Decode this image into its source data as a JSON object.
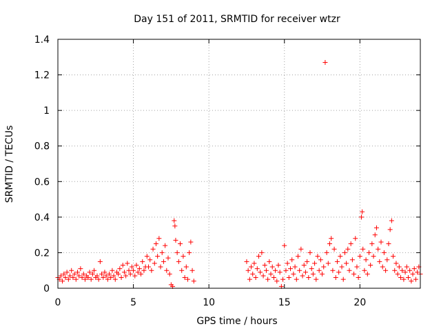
{
  "chart_data": {
    "type": "scatter",
    "title": "Day 151 of 2011, SRMTID for receiver wtzr",
    "xlabel": "GPS time / hours",
    "ylabel": "SRMTID / TECUs",
    "xlim": [
      0,
      24
    ],
    "ylim": [
      0,
      1.4
    ],
    "xticks": [
      0,
      5,
      10,
      15,
      20
    ],
    "xtick_labels": [
      "0",
      "5",
      "10",
      "15",
      "20"
    ],
    "yticks": [
      0,
      0.2,
      0.4,
      0.6,
      0.8,
      1,
      1.2,
      1.4
    ],
    "ytick_labels": [
      "0",
      "0.2",
      "0.4",
      "0.6",
      "0.8",
      "1",
      "1.2",
      "1.4"
    ],
    "grid": true,
    "marker": "+",
    "color": "#ff0000",
    "series": [
      {
        "name": "SRMTID",
        "points": [
          [
            0.0,
            0.06
          ],
          [
            0.1,
            0.05
          ],
          [
            0.2,
            0.07
          ],
          [
            0.3,
            0.04
          ],
          [
            0.4,
            0.08
          ],
          [
            0.5,
            0.06
          ],
          [
            0.6,
            0.09
          ],
          [
            0.7,
            0.05
          ],
          [
            0.8,
            0.07
          ],
          [
            0.9,
            0.1
          ],
          [
            1.0,
            0.06
          ],
          [
            1.1,
            0.08
          ],
          [
            1.2,
            0.05
          ],
          [
            1.3,
            0.09
          ],
          [
            1.4,
            0.07
          ],
          [
            1.5,
            0.11
          ],
          [
            1.6,
            0.06
          ],
          [
            1.7,
            0.08
          ],
          [
            1.8,
            0.05
          ],
          [
            1.9,
            0.07
          ],
          [
            2.0,
            0.06
          ],
          [
            2.1,
            0.09
          ],
          [
            2.2,
            0.05
          ],
          [
            2.3,
            0.08
          ],
          [
            2.4,
            0.1
          ],
          [
            2.5,
            0.06
          ],
          [
            2.6,
            0.07
          ],
          [
            2.7,
            0.05
          ],
          [
            2.8,
            0.15
          ],
          [
            2.9,
            0.08
          ],
          [
            3.0,
            0.06
          ],
          [
            3.1,
            0.09
          ],
          [
            3.2,
            0.07
          ],
          [
            3.3,
            0.05
          ],
          [
            3.4,
            0.08
          ],
          [
            3.5,
            0.06
          ],
          [
            3.6,
            0.1
          ],
          [
            3.7,
            0.07
          ],
          [
            3.8,
            0.05
          ],
          [
            3.9,
            0.09
          ],
          [
            4.0,
            0.08
          ],
          [
            4.1,
            0.11
          ],
          [
            4.2,
            0.06
          ],
          [
            4.3,
            0.13
          ],
          [
            4.4,
            0.09
          ],
          [
            4.5,
            0.07
          ],
          [
            4.6,
            0.14
          ],
          [
            4.7,
            0.1
          ],
          [
            4.8,
            0.08
          ],
          [
            4.9,
            0.12
          ],
          [
            5.0,
            0.1
          ],
          [
            5.1,
            0.07
          ],
          [
            5.2,
            0.13
          ],
          [
            5.3,
            0.09
          ],
          [
            5.4,
            0.11
          ],
          [
            5.5,
            0.08
          ],
          [
            5.6,
            0.15
          ],
          [
            5.7,
            0.1
          ],
          [
            5.8,
            0.12
          ],
          [
            5.9,
            0.18
          ],
          [
            6.0,
            0.12
          ],
          [
            6.1,
            0.16
          ],
          [
            6.2,
            0.1
          ],
          [
            6.3,
            0.22
          ],
          [
            6.4,
            0.14
          ],
          [
            6.5,
            0.25
          ],
          [
            6.6,
            0.18
          ],
          [
            6.7,
            0.28
          ],
          [
            6.8,
            0.12
          ],
          [
            6.9,
            0.2
          ],
          [
            7.0,
            0.15
          ],
          [
            7.1,
            0.24
          ],
          [
            7.2,
            0.1
          ],
          [
            7.3,
            0.17
          ],
          [
            7.4,
            0.08
          ],
          [
            7.5,
            0.02
          ],
          [
            7.6,
            0.01
          ],
          [
            7.7,
            0.38
          ],
          [
            7.75,
            0.35
          ],
          [
            7.8,
            0.27
          ],
          [
            7.9,
            0.2
          ],
          [
            8.0,
            0.15
          ],
          [
            8.1,
            0.25
          ],
          [
            8.2,
            0.1
          ],
          [
            8.3,
            0.18
          ],
          [
            8.4,
            0.06
          ],
          [
            8.5,
            0.12
          ],
          [
            8.6,
            0.05
          ],
          [
            8.7,
            0.2
          ],
          [
            8.8,
            0.26
          ],
          [
            8.9,
            0.1
          ],
          [
            9.0,
            0.04
          ],
          [
            12.5,
            0.15
          ],
          [
            12.6,
            0.1
          ],
          [
            12.7,
            0.05
          ],
          [
            12.8,
            0.12
          ],
          [
            12.9,
            0.08
          ],
          [
            13.0,
            0.14
          ],
          [
            13.1,
            0.06
          ],
          [
            13.2,
            0.11
          ],
          [
            13.3,
            0.18
          ],
          [
            13.4,
            0.09
          ],
          [
            13.5,
            0.2
          ],
          [
            13.6,
            0.07
          ],
          [
            13.7,
            0.13
          ],
          [
            13.8,
            0.1
          ],
          [
            13.9,
            0.05
          ],
          [
            14.0,
            0.15
          ],
          [
            14.1,
            0.08
          ],
          [
            14.2,
            0.12
          ],
          [
            14.3,
            0.06
          ],
          [
            14.4,
            0.1
          ],
          [
            14.5,
            0.04
          ],
          [
            14.6,
            0.13
          ],
          [
            14.7,
            0.09
          ],
          [
            14.8,
            0.01
          ],
          [
            14.9,
            0.05
          ],
          [
            15.0,
            0.24
          ],
          [
            15.1,
            0.1
          ],
          [
            15.2,
            0.14
          ],
          [
            15.3,
            0.06
          ],
          [
            15.4,
            0.11
          ],
          [
            15.5,
            0.16
          ],
          [
            15.6,
            0.08
          ],
          [
            15.7,
            0.12
          ],
          [
            15.8,
            0.05
          ],
          [
            15.9,
            0.18
          ],
          [
            16.0,
            0.1
          ],
          [
            16.1,
            0.22
          ],
          [
            16.2,
            0.07
          ],
          [
            16.3,
            0.13
          ],
          [
            16.4,
            0.09
          ],
          [
            16.5,
            0.15
          ],
          [
            16.6,
            0.06
          ],
          [
            16.7,
            0.2
          ],
          [
            16.8,
            0.11
          ],
          [
            16.9,
            0.08
          ],
          [
            17.0,
            0.14
          ],
          [
            17.1,
            0.05
          ],
          [
            17.2,
            0.18
          ],
          [
            17.3,
            0.1
          ],
          [
            17.4,
            0.16
          ],
          [
            17.5,
            0.08
          ],
          [
            17.6,
            0.12
          ],
          [
            17.7,
            1.27
          ],
          [
            17.8,
            0.2
          ],
          [
            17.9,
            0.14
          ],
          [
            18.0,
            0.25
          ],
          [
            18.1,
            0.28
          ],
          [
            18.2,
            0.1
          ],
          [
            18.3,
            0.22
          ],
          [
            18.4,
            0.06
          ],
          [
            18.5,
            0.15
          ],
          [
            18.6,
            0.09
          ],
          [
            18.7,
            0.18
          ],
          [
            18.8,
            0.12
          ],
          [
            18.9,
            0.05
          ],
          [
            19.0,
            0.2
          ],
          [
            19.1,
            0.14
          ],
          [
            19.2,
            0.22
          ],
          [
            19.3,
            0.1
          ],
          [
            19.4,
            0.25
          ],
          [
            19.5,
            0.16
          ],
          [
            19.6,
            0.08
          ],
          [
            19.7,
            0.28
          ],
          [
            19.8,
            0.12
          ],
          [
            19.9,
            0.06
          ],
          [
            20.0,
            0.18
          ],
          [
            20.1,
            0.4
          ],
          [
            20.15,
            0.43
          ],
          [
            20.2,
            0.22
          ],
          [
            20.3,
            0.1
          ],
          [
            20.4,
            0.16
          ],
          [
            20.5,
            0.08
          ],
          [
            20.6,
            0.2
          ],
          [
            20.7,
            0.13
          ],
          [
            20.8,
            0.25
          ],
          [
            20.9,
            0.18
          ],
          [
            21.0,
            0.3
          ],
          [
            21.1,
            0.34
          ],
          [
            21.2,
            0.22
          ],
          [
            21.3,
            0.15
          ],
          [
            21.4,
            0.26
          ],
          [
            21.5,
            0.12
          ],
          [
            21.6,
            0.2
          ],
          [
            21.7,
            0.1
          ],
          [
            21.8,
            0.16
          ],
          [
            21.9,
            0.25
          ],
          [
            22.0,
            0.33
          ],
          [
            22.1,
            0.38
          ],
          [
            22.2,
            0.18
          ],
          [
            22.3,
            0.1
          ],
          [
            22.4,
            0.14
          ],
          [
            22.5,
            0.08
          ],
          [
            22.6,
            0.12
          ],
          [
            22.7,
            0.06
          ],
          [
            22.8,
            0.1
          ],
          [
            22.9,
            0.05
          ],
          [
            23.0,
            0.09
          ],
          [
            23.1,
            0.12
          ],
          [
            23.2,
            0.06
          ],
          [
            23.3,
            0.1
          ],
          [
            23.4,
            0.04
          ],
          [
            23.5,
            0.08
          ],
          [
            23.6,
            0.11
          ],
          [
            23.7,
            0.05
          ],
          [
            23.8,
            0.09
          ],
          [
            23.9,
            0.12
          ],
          [
            24.0,
            0.08
          ]
        ]
      }
    ]
  }
}
